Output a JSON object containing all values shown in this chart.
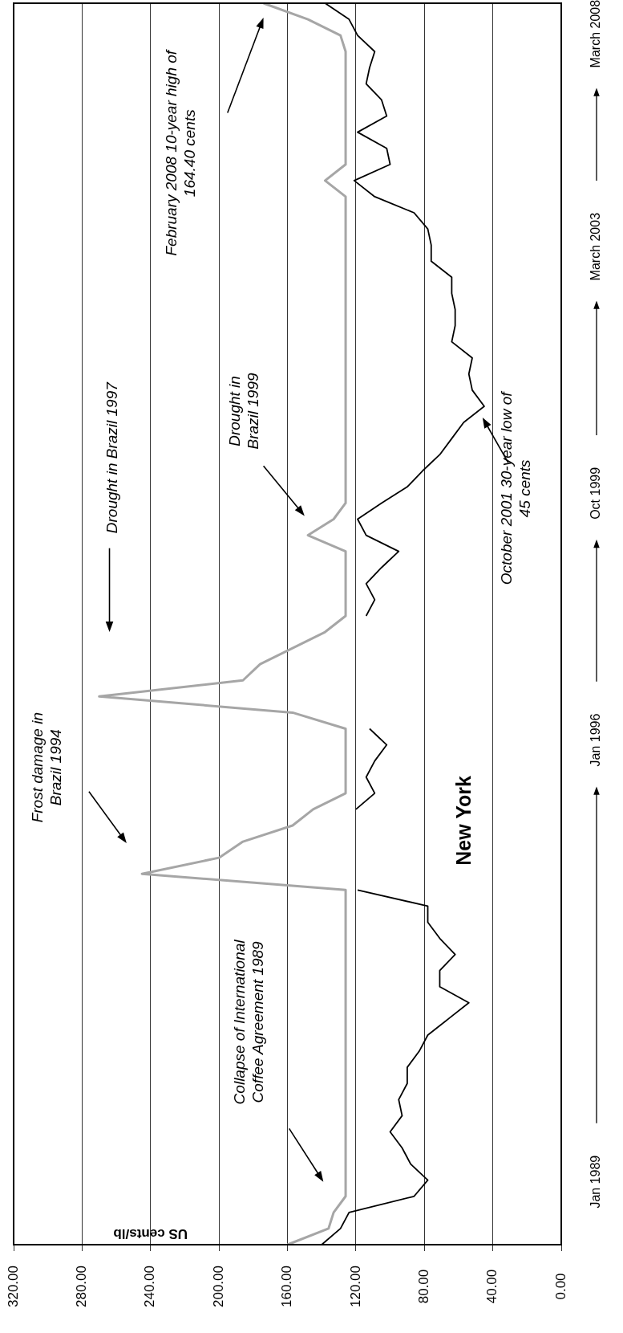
{
  "chart_data": {
    "type": "line",
    "orientation": "horizontal",
    "xlabel": "US cents/lb",
    "categories": [
      null,
      null,
      null,
      null,
      null,
      null,
      null,
      null,
      null,
      null,
      null,
      null,
      null,
      null,
      null,
      null,
      null,
      null,
      null,
      null,
      null,
      null,
      null,
      null,
      null,
      null,
      null,
      null,
      null,
      null,
      null,
      null,
      null,
      null,
      null,
      null,
      null,
      null,
      null,
      null,
      null,
      null,
      null,
      null,
      null,
      null,
      null,
      null,
      null,
      null,
      null,
      null,
      null,
      null,
      null,
      null,
      null,
      null,
      null,
      null,
      null,
      null,
      null,
      null,
      null,
      null,
      null,
      null,
      null,
      null,
      null,
      null,
      null,
      null,
      null,
      null,
      null,
      null
    ],
    "series": [
      {
        "color": "#a6a6a6",
        "values": [
          174,
          148,
          129,
          126,
          126,
          126,
          126,
          126,
          126,
          126,
          126,
          138,
          126,
          126,
          126,
          126,
          126,
          126,
          126,
          126,
          126,
          126,
          126,
          126,
          126,
          126,
          126,
          126,
          126,
          126,
          126,
          126,
          133,
          148,
          126,
          126,
          126,
          126,
          126,
          138,
          157,
          176,
          186,
          270,
          157,
          126,
          126,
          126,
          126,
          126,
          145,
          157,
          186,
          200,
          245,
          126,
          126,
          126,
          126,
          126,
          126,
          126,
          126,
          126,
          126,
          126,
          126,
          126,
          126,
          126,
          126,
          126,
          126,
          126,
          126,
          133,
          136,
          160
        ]
      },
      {
        "name": "New York",
        "color": "#000000",
        "values": [
          138,
          124,
          119,
          109,
          112,
          114,
          105,
          102,
          119,
          102,
          100,
          121,
          109,
          86,
          78,
          76,
          76,
          64,
          64,
          62,
          62,
          64,
          52,
          54,
          52,
          45,
          57,
          64,
          71,
          81,
          90,
          105,
          119,
          114,
          95,
          105,
          114,
          109,
          114,
          null,
          null,
          null,
          null,
          null,
          null,
          112,
          102,
          109,
          114,
          109,
          120,
          null,
          null,
          null,
          null,
          119,
          78,
          78,
          71,
          62,
          71,
          71,
          54,
          66,
          78,
          83,
          90,
          90,
          95,
          93,
          100,
          93,
          88,
          78,
          86,
          124,
          129,
          140
        ]
      }
    ],
    "xlim": [
      320,
      0
    ],
    "legend": false,
    "xticks": [
      {
        "value": 0,
        "label": "0.00"
      },
      {
        "value": 40,
        "label": "40.00"
      },
      {
        "value": 80,
        "label": "80.00"
      },
      {
        "value": 120,
        "label": "120.00"
      },
      {
        "value": 160,
        "label": "160.00"
      },
      {
        "value": 200,
        "label": "200.00"
      },
      {
        "value": 240,
        "label": "240.00"
      },
      {
        "value": 280,
        "label": "280.00"
      },
      {
        "value": 320,
        "label": "320.00"
      }
    ],
    "grid": "x",
    "tick_labels": "x",
    "annotations": [
      "Frost damage in Brazil 1994",
      "Drought in Brazil 1997",
      "Drought in Brazil 1999",
      "February 2008 10-year high of 164.40 cents",
      "October 2001 30-year low of 45 cents",
      "Collapse of International Coffee Agreement 1989",
      "Jan 1989",
      "Jan 1996",
      "Oct 1999",
      "March 2003",
      "March 2008"
    ]
  }
}
